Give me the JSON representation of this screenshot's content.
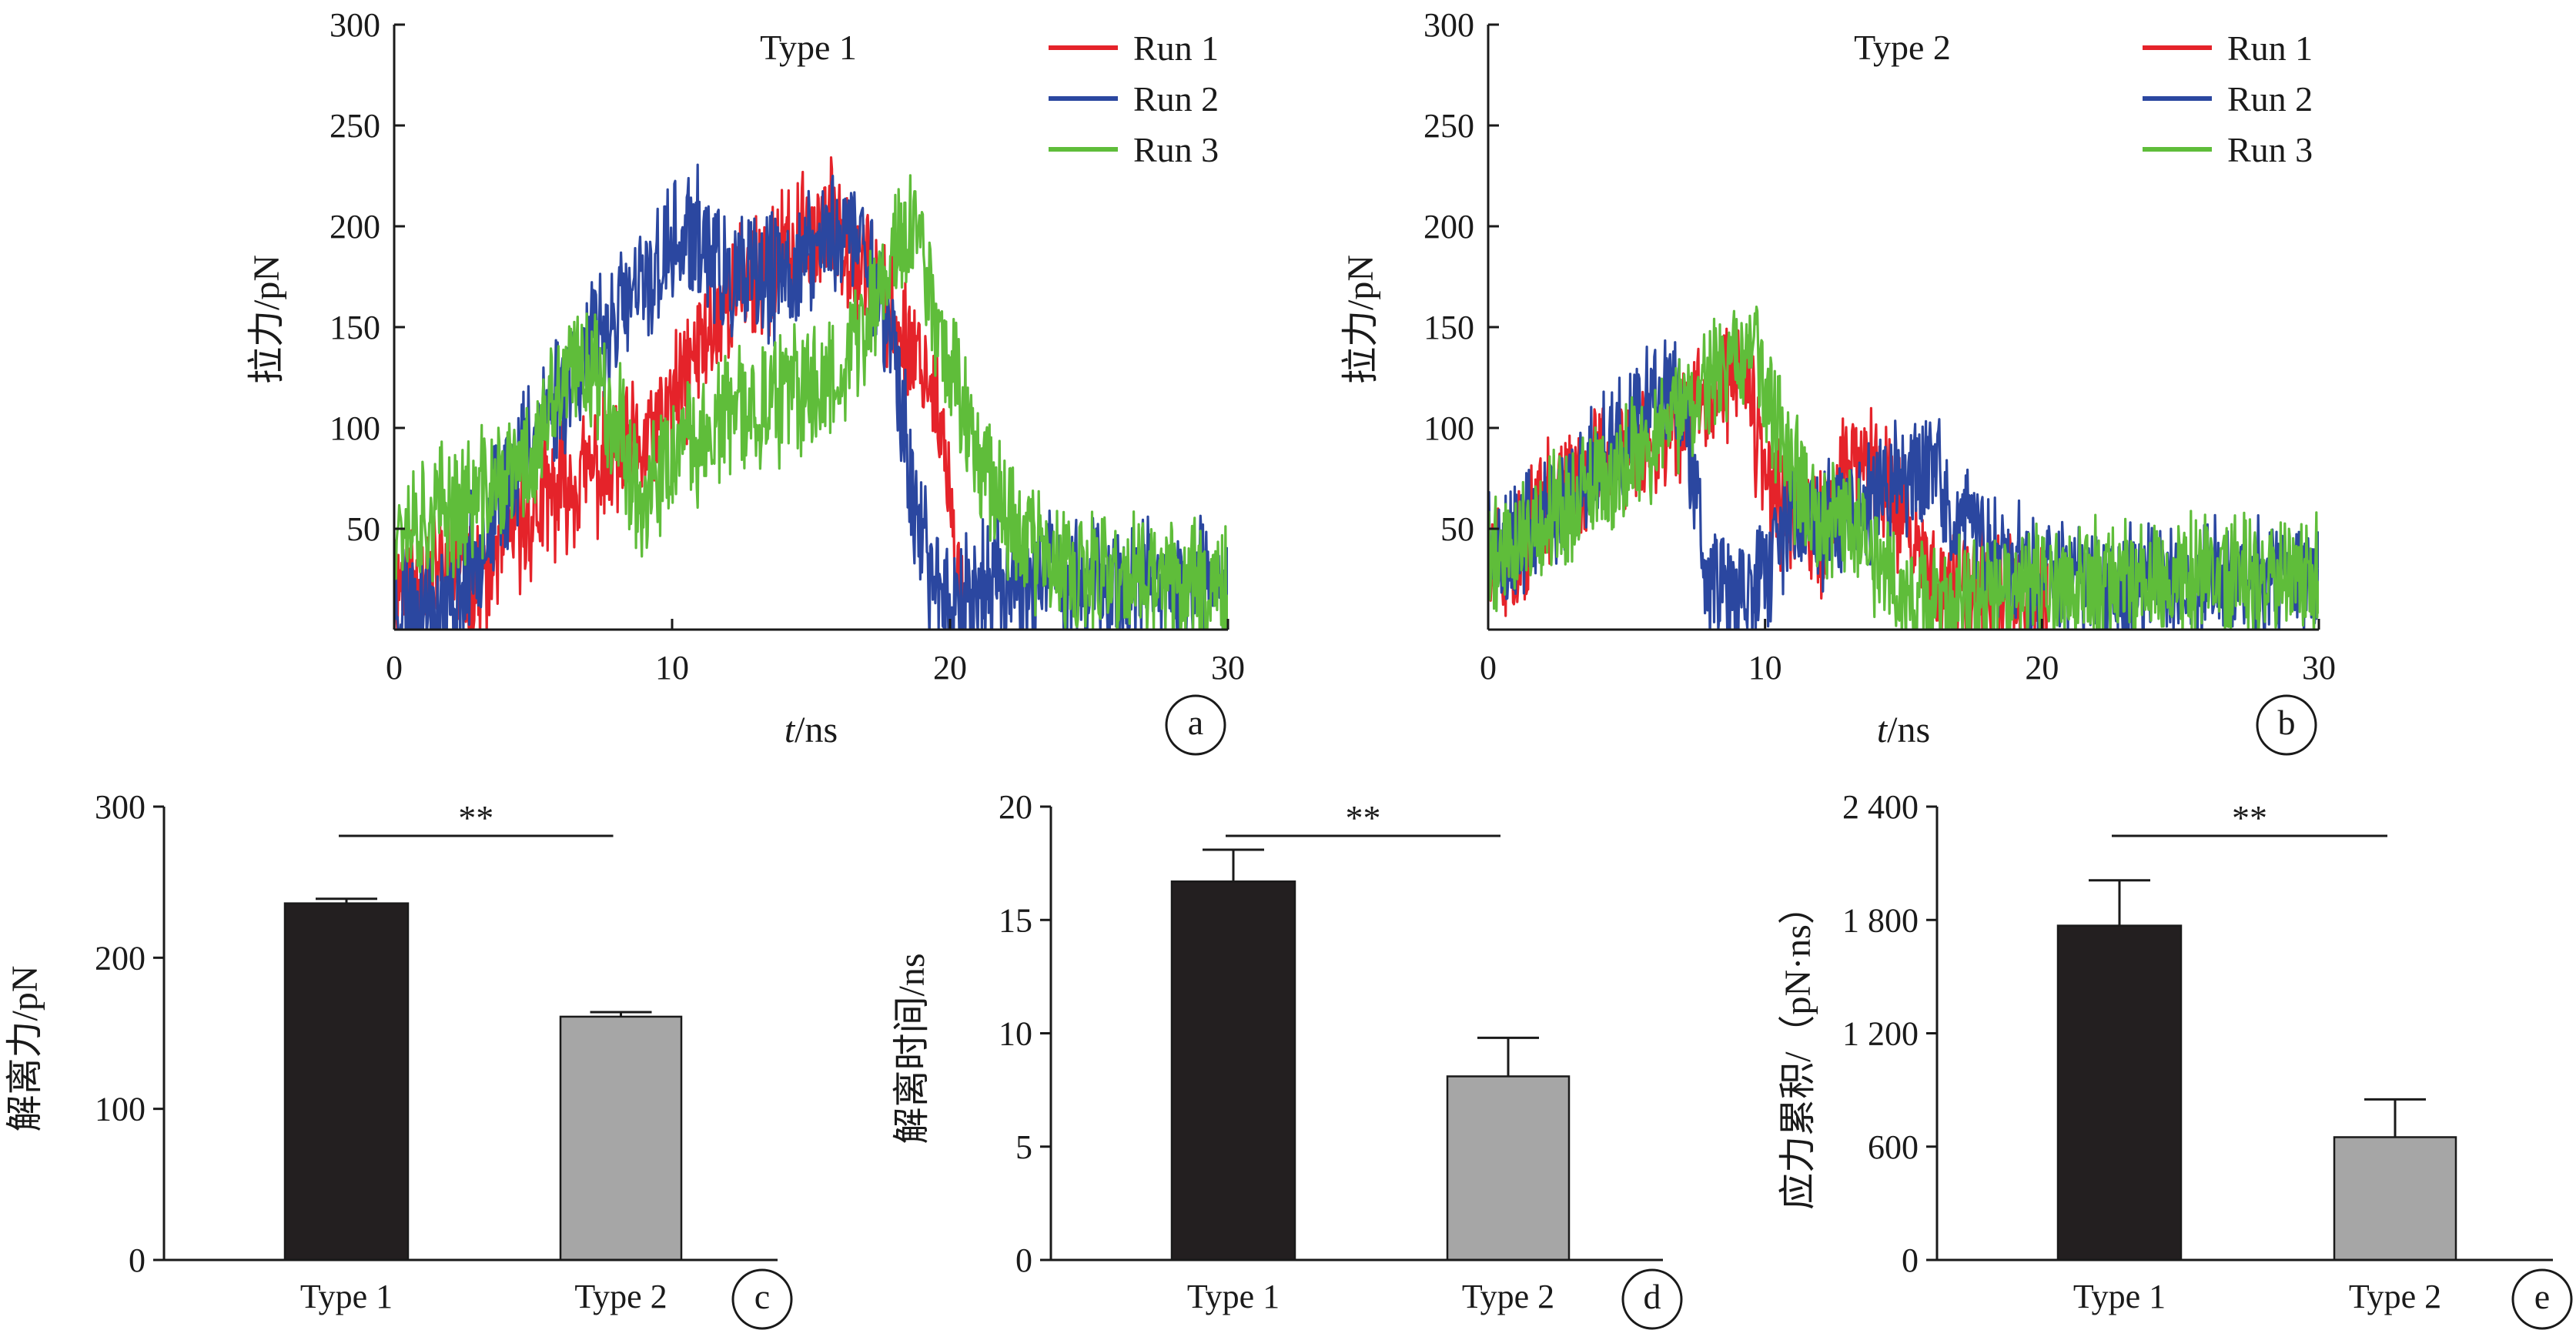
{
  "colors": {
    "run1": "#e5232a",
    "run2": "#2b47a0",
    "run3": "#5fbd3a",
    "type1_bar": "#231f20",
    "type2_bar": "#a6a6a6",
    "axis": "#1a1a1a"
  },
  "chart_data": [
    {
      "id": "a",
      "type": "line",
      "title": "Type 1",
      "panel_label": "a",
      "xlabel_italic": "t",
      "xlabel_rest": "/ns",
      "ylabel": "拉力/pN",
      "xlim": [
        0,
        30
      ],
      "ylim": [
        0,
        300
      ],
      "xticks": [
        0,
        10,
        20,
        30
      ],
      "yticks": [
        50,
        100,
        150,
        200,
        250,
        300
      ],
      "legend_position": "top-right",
      "series": [
        {
          "name": "Run 1",
          "color_key": "run1",
          "x_end": 20.5,
          "keyframes": [
            [
              0,
              25
            ],
            [
              2,
              30
            ],
            [
              3,
              20
            ],
            [
              4,
              45
            ],
            [
              6,
              70
            ],
            [
              8,
              85
            ],
            [
              9,
              90
            ],
            [
              10,
              110
            ],
            [
              11,
              140
            ],
            [
              12,
              165
            ],
            [
              13,
              175
            ],
            [
              14,
              185
            ],
            [
              15,
              195
            ],
            [
              16,
              200
            ],
            [
              17,
              180
            ],
            [
              18,
              150
            ],
            [
              19,
              135
            ],
            [
              19.6,
              110
            ],
            [
              20.2,
              30
            ],
            [
              20.5,
              5
            ]
          ],
          "noise": 28,
          "seed": 11
        },
        {
          "name": "Run 2",
          "color_key": "run2",
          "x_end": 30,
          "keyframes": [
            [
              0,
              15
            ],
            [
              2,
              10
            ],
            [
              3,
              40
            ],
            [
              5,
              100
            ],
            [
              7,
              140
            ],
            [
              9,
              170
            ],
            [
              10,
              190
            ],
            [
              11,
              195
            ],
            [
              12,
              170
            ],
            [
              14,
              175
            ],
            [
              16,
              200
            ],
            [
              17,
              190
            ],
            [
              18,
              140
            ],
            [
              18.6,
              70
            ],
            [
              19.2,
              30
            ],
            [
              20,
              15
            ],
            [
              22,
              25
            ],
            [
              30,
              20
            ]
          ],
          "noise": 28,
          "seed": 23
        },
        {
          "name": "Run 3",
          "color_key": "run3",
          "x_end": 30,
          "keyframes": [
            [
              0,
              55
            ],
            [
              1,
              55
            ],
            [
              3,
              65
            ],
            [
              5,
              85
            ],
            [
              6,
              120
            ],
            [
              7,
              135
            ],
            [
              8,
              105
            ],
            [
              9,
              60
            ],
            [
              10,
              85
            ],
            [
              12,
              105
            ],
            [
              13,
              110
            ],
            [
              15,
              120
            ],
            [
              16,
              130
            ],
            [
              17,
              150
            ],
            [
              18,
              190
            ],
            [
              18.8,
              200
            ],
            [
              19.4,
              160
            ],
            [
              20.5,
              110
            ],
            [
              22,
              60
            ],
            [
              24,
              25
            ],
            [
              30,
              25
            ]
          ],
          "noise": 28,
          "seed": 37
        }
      ]
    },
    {
      "id": "b",
      "type": "line",
      "title": "Type 2",
      "panel_label": "b",
      "xlabel_italic": "t",
      "xlabel_rest": "/ns",
      "ylabel": "拉力/pN",
      "xlim": [
        0,
        30
      ],
      "ylim": [
        0,
        300
      ],
      "xticks": [
        0,
        10,
        20,
        30
      ],
      "yticks": [
        50,
        100,
        150,
        200,
        250,
        300
      ],
      "legend_position": "top-right",
      "series": [
        {
          "name": "Run 1",
          "color_key": "run1",
          "x_end": 20.2,
          "keyframes": [
            [
              0,
              25
            ],
            [
              1,
              35
            ],
            [
              2,
              60
            ],
            [
              4,
              85
            ],
            [
              6,
              95
            ],
            [
              8,
              115
            ],
            [
              9,
              130
            ],
            [
              9.5,
              110
            ],
            [
              10,
              70
            ],
            [
              11,
              55
            ],
            [
              12,
              45
            ],
            [
              13,
              80
            ],
            [
              14,
              85
            ],
            [
              15,
              55
            ],
            [
              16,
              25
            ],
            [
              18,
              20
            ],
            [
              20.2,
              15
            ]
          ],
          "noise": 26,
          "seed": 51
        },
        {
          "name": "Run 2",
          "color_key": "run2",
          "x_end": 30,
          "keyframes": [
            [
              0,
              35
            ],
            [
              2,
              55
            ],
            [
              4,
              85
            ],
            [
              6,
              120
            ],
            [
              7,
              115
            ],
            [
              7.5,
              75
            ],
            [
              8,
              25
            ],
            [
              9,
              15
            ],
            [
              10,
              30
            ],
            [
              11,
              55
            ],
            [
              12,
              50
            ],
            [
              13,
              60
            ],
            [
              14,
              65
            ],
            [
              15,
              75
            ],
            [
              16,
              80
            ],
            [
              17,
              55
            ],
            [
              18,
              40
            ],
            [
              20,
              25
            ],
            [
              24,
              25
            ],
            [
              30,
              25
            ]
          ],
          "noise": 26,
          "seed": 63
        },
        {
          "name": "Run 3",
          "color_key": "run3",
          "x_end": 30,
          "keyframes": [
            [
              0,
              35
            ],
            [
              2,
              55
            ],
            [
              4,
              70
            ],
            [
              6,
              95
            ],
            [
              8,
              125
            ],
            [
              9.5,
              140
            ],
            [
              10,
              120
            ],
            [
              11,
              75
            ],
            [
              12,
              55
            ],
            [
              13,
              55
            ],
            [
              14,
              35
            ],
            [
              15,
              15
            ],
            [
              16,
              10
            ],
            [
              18,
              15
            ],
            [
              20,
              20
            ],
            [
              24,
              25
            ],
            [
              30,
              30
            ]
          ],
          "noise": 26,
          "seed": 79
        }
      ]
    },
    {
      "id": "c",
      "type": "bar",
      "panel_label": "c",
      "ylabel": "解离力/pN",
      "categories": [
        "Type 1",
        "Type 2"
      ],
      "values": [
        236,
        161
      ],
      "errors": [
        3,
        3
      ],
      "bar_color_keys": [
        "type1_bar",
        "type2_bar"
      ],
      "ylim": [
        0,
        300
      ],
      "yticks": [
        0,
        100,
        200,
        300
      ],
      "ytick_labels": [
        "0",
        "100",
        "200",
        "300"
      ],
      "significance": "**"
    },
    {
      "id": "d",
      "type": "bar",
      "panel_label": "d",
      "ylabel": "解离时间/ns",
      "categories": [
        "Type 1",
        "Type 2"
      ],
      "values": [
        16.7,
        8.1
      ],
      "errors": [
        1.4,
        1.7
      ],
      "bar_color_keys": [
        "type1_bar",
        "type2_bar"
      ],
      "ylim": [
        0,
        20
      ],
      "yticks": [
        0,
        5,
        10,
        15,
        20
      ],
      "ytick_labels": [
        "0",
        "5",
        "10",
        "15",
        "20"
      ],
      "significance": "**"
    },
    {
      "id": "e",
      "type": "bar",
      "panel_label": "e",
      "ylabel": "应力累积/（pN·ns）",
      "categories": [
        "Type 1",
        "Type 2"
      ],
      "values": [
        1770,
        650
      ],
      "errors": [
        240,
        200
      ],
      "bar_color_keys": [
        "type1_bar",
        "type2_bar"
      ],
      "ylim": [
        0,
        2400
      ],
      "yticks": [
        0,
        600,
        1200,
        1800,
        2400
      ],
      "ytick_labels": [
        "0",
        "600",
        "1 200",
        "1 800",
        "2 400"
      ],
      "significance": "**"
    }
  ]
}
